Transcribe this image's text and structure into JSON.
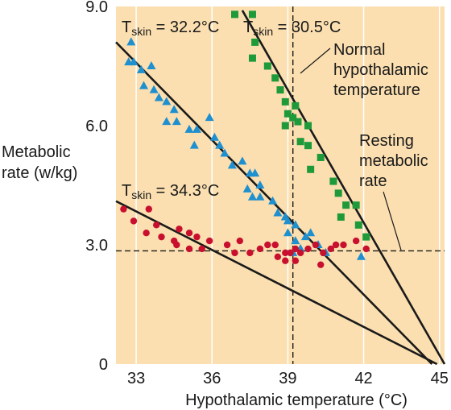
{
  "chart_data": {
    "type": "scatter",
    "ylabel": [
      "Metabolic",
      "rate (w/kg)"
    ],
    "xlabel": "Hypothalamic temperature (°C)",
    "xlim": [
      32.2,
      45.2
    ],
    "ylim": [
      0,
      9.0
    ],
    "x_ticks": [
      33,
      36,
      39,
      42,
      45
    ],
    "y_ticks": [
      {
        "value": 0,
        "label": "0"
      },
      {
        "value": 3.0,
        "label": "3.0"
      },
      {
        "value": 6.0,
        "label": "6.0"
      },
      {
        "value": 9.0,
        "label": "9.0"
      }
    ],
    "grid": "x",
    "colors": {
      "background": "#fbdfb0",
      "grid": "#ffffff",
      "triangles": "#1e8fcf",
      "squares": "#1f9a3a",
      "circles": "#c8102e",
      "lines": "#1a1a1a"
    },
    "series": [
      {
        "label_prefix": "T",
        "label_sub": "skin",
        "label_value": " = 32.2°C",
        "marker": "triangle",
        "line": [
          [
            32.2,
            8.1
          ],
          [
            44.7,
            0
          ]
        ],
        "points": [
          [
            32.8,
            8.1
          ],
          [
            32.7,
            7.6
          ],
          [
            32.9,
            7.6
          ],
          [
            33.2,
            7.4
          ],
          [
            33.6,
            7.5
          ],
          [
            33.3,
            7.0
          ],
          [
            33.7,
            6.9
          ],
          [
            33.9,
            6.7
          ],
          [
            34.2,
            6.6
          ],
          [
            34.5,
            6.4
          ],
          [
            34.2,
            6.1
          ],
          [
            34.6,
            6.1
          ],
          [
            35.1,
            5.9
          ],
          [
            35.4,
            5.9
          ],
          [
            35.3,
            5.5
          ],
          [
            35.9,
            6.2
          ],
          [
            36.1,
            5.7
          ],
          [
            36.3,
            5.5
          ],
          [
            36.5,
            5.3
          ],
          [
            36.8,
            5.0
          ],
          [
            37.2,
            5.1
          ],
          [
            37.5,
            4.8
          ],
          [
            37.7,
            4.8
          ],
          [
            37.4,
            4.4
          ],
          [
            37.9,
            4.5
          ],
          [
            37.6,
            4.2
          ],
          [
            37.9,
            4.2
          ],
          [
            38.4,
            4.1
          ],
          [
            38.6,
            3.8
          ],
          [
            38.9,
            3.7
          ],
          [
            39.0,
            3.6
          ],
          [
            39.3,
            3.5
          ],
          [
            39.0,
            3.3
          ],
          [
            39.3,
            3.1
          ],
          [
            39.7,
            3.2
          ],
          [
            39.2,
            2.8
          ],
          [
            39.5,
            2.9
          ],
          [
            39.9,
            3.3
          ],
          [
            40.2,
            3.0
          ],
          [
            40.5,
            2.8
          ],
          [
            41.9,
            2.7
          ]
        ]
      },
      {
        "label_prefix": "T",
        "label_sub": "skin",
        "label_value": " = 30.5°C",
        "marker": "square",
        "line": [
          [
            37.2,
            8.9
          ],
          [
            45.2,
            0
          ]
        ],
        "points": [
          [
            36.9,
            8.8
          ],
          [
            37.6,
            8.8
          ],
          [
            37.7,
            8.1
          ],
          [
            37.6,
            7.7
          ],
          [
            38.2,
            7.5
          ],
          [
            38.5,
            7.2
          ],
          [
            38.7,
            6.9
          ],
          [
            38.9,
            6.6
          ],
          [
            39.0,
            6.3
          ],
          [
            38.9,
            6.0
          ],
          [
            39.3,
            6.5
          ],
          [
            39.2,
            6.2
          ],
          [
            39.4,
            6.1
          ],
          [
            39.8,
            6.0
          ],
          [
            39.5,
            5.6
          ],
          [
            39.8,
            5.5
          ],
          [
            40.3,
            5.2
          ],
          [
            39.9,
            4.9
          ],
          [
            40.8,
            4.6
          ],
          [
            41.0,
            4.3
          ],
          [
            41.3,
            4.0
          ],
          [
            41.7,
            4.0
          ],
          [
            41.1,
            3.7
          ],
          [
            41.8,
            3.5
          ],
          [
            42.1,
            3.2
          ]
        ]
      },
      {
        "label_prefix": "T",
        "label_sub": "skin",
        "label_value": " = 34.3°C",
        "marker": "circle",
        "line": [
          [
            32.2,
            4.1
          ],
          [
            44.9,
            0
          ]
        ],
        "points": [
          [
            32.5,
            3.9
          ],
          [
            32.9,
            3.6
          ],
          [
            33.5,
            3.9
          ],
          [
            33.8,
            3.5
          ],
          [
            33.4,
            3.3
          ],
          [
            34.0,
            3.2
          ],
          [
            34.5,
            3.1
          ],
          [
            34.7,
            3.4
          ],
          [
            35.1,
            3.3
          ],
          [
            35.4,
            3.2
          ],
          [
            34.6,
            3.0
          ],
          [
            35.1,
            2.9
          ],
          [
            35.6,
            2.9
          ],
          [
            35.9,
            3.1
          ],
          [
            36.6,
            3.0
          ],
          [
            37.1,
            3.1
          ],
          [
            36.9,
            2.8
          ],
          [
            37.5,
            2.8
          ],
          [
            37.9,
            2.9
          ],
          [
            38.2,
            3.0
          ],
          [
            38.5,
            3.0
          ],
          [
            38.6,
            2.7
          ],
          [
            38.9,
            2.8
          ],
          [
            39.1,
            2.8
          ],
          [
            39.3,
            2.9
          ],
          [
            39.5,
            2.8
          ],
          [
            38.9,
            2.6
          ],
          [
            39.3,
            2.6
          ],
          [
            39.8,
            2.9
          ],
          [
            40.1,
            3.0
          ],
          [
            40.4,
            2.8
          ],
          [
            40.7,
            2.9
          ],
          [
            40.9,
            3.0
          ],
          [
            41.2,
            3.0
          ],
          [
            41.7,
            3.1
          ],
          [
            42.1,
            2.9
          ],
          [
            40.3,
            2.5
          ]
        ]
      }
    ],
    "reference_lines": [
      {
        "orientation": "vertical",
        "value": 39.2,
        "style": "dashed",
        "label": [
          "Normal",
          "hypothalamic",
          "temperature"
        ]
      },
      {
        "orientation": "horizontal",
        "value": 2.85,
        "style": "dashed",
        "label": [
          "Resting",
          "metabolic",
          "rate"
        ]
      }
    ]
  }
}
